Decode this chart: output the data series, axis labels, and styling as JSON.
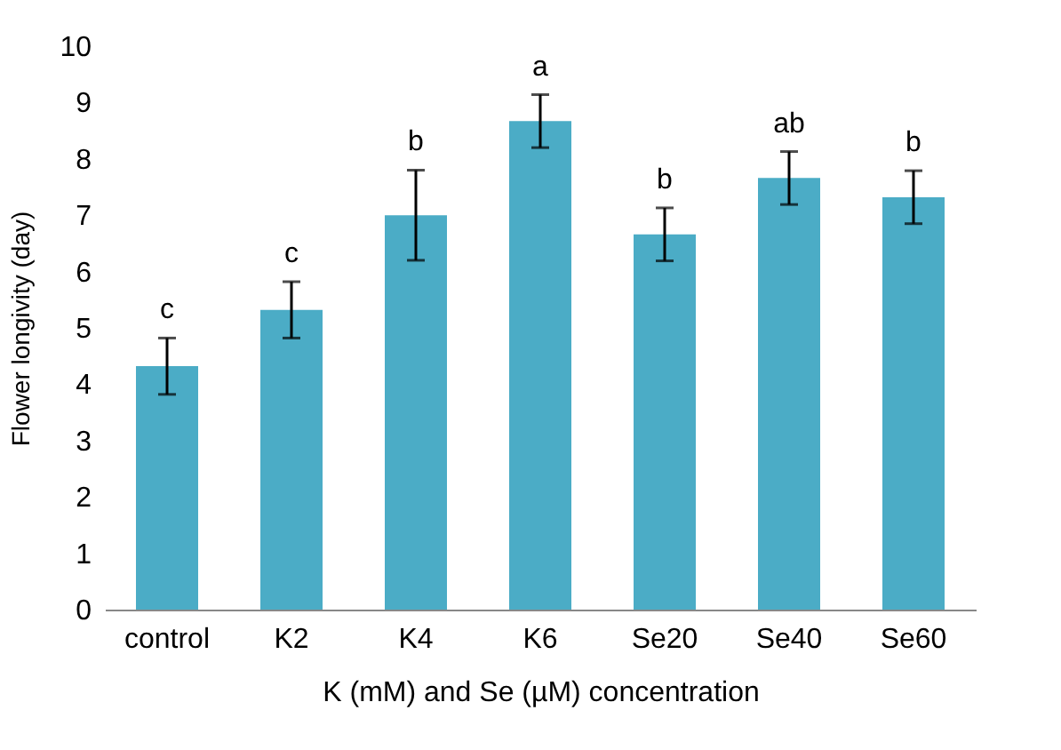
{
  "chart_data": {
    "type": "bar",
    "xlabel": "K (mM) and Se (µM) concentration",
    "ylabel": "Flower longivity (day)",
    "categories": [
      "control",
      "K2",
      "K4",
      "K6",
      "Se20",
      "Se40",
      "Se60"
    ],
    "values": [
      4.32,
      5.32,
      7.0,
      8.67,
      6.66,
      7.66,
      7.32
    ],
    "errors": [
      0.5,
      0.5,
      0.8,
      0.47,
      0.47,
      0.47,
      0.47
    ],
    "color": "#4bacc6",
    "ylim": [
      0,
      10
    ],
    "yticks": [
      0,
      1,
      2,
      3,
      4,
      5,
      6,
      7,
      8,
      9,
      10
    ],
    "grid": false,
    "annotations": [
      {
        "text": "c",
        "x": "control",
        "y": 4.82
      },
      {
        "text": "c",
        "x": "K2",
        "y": 5.82
      },
      {
        "text": "b",
        "x": "K4",
        "y": 7.8
      },
      {
        "text": "a",
        "x": "K6",
        "y": 9.14
      },
      {
        "text": "b",
        "x": "Se20",
        "y": 7.13
      },
      {
        "text": "ab",
        "x": "Se40",
        "y": 8.13
      },
      {
        "text": "b",
        "x": "Se60",
        "y": 7.79
      }
    ]
  }
}
